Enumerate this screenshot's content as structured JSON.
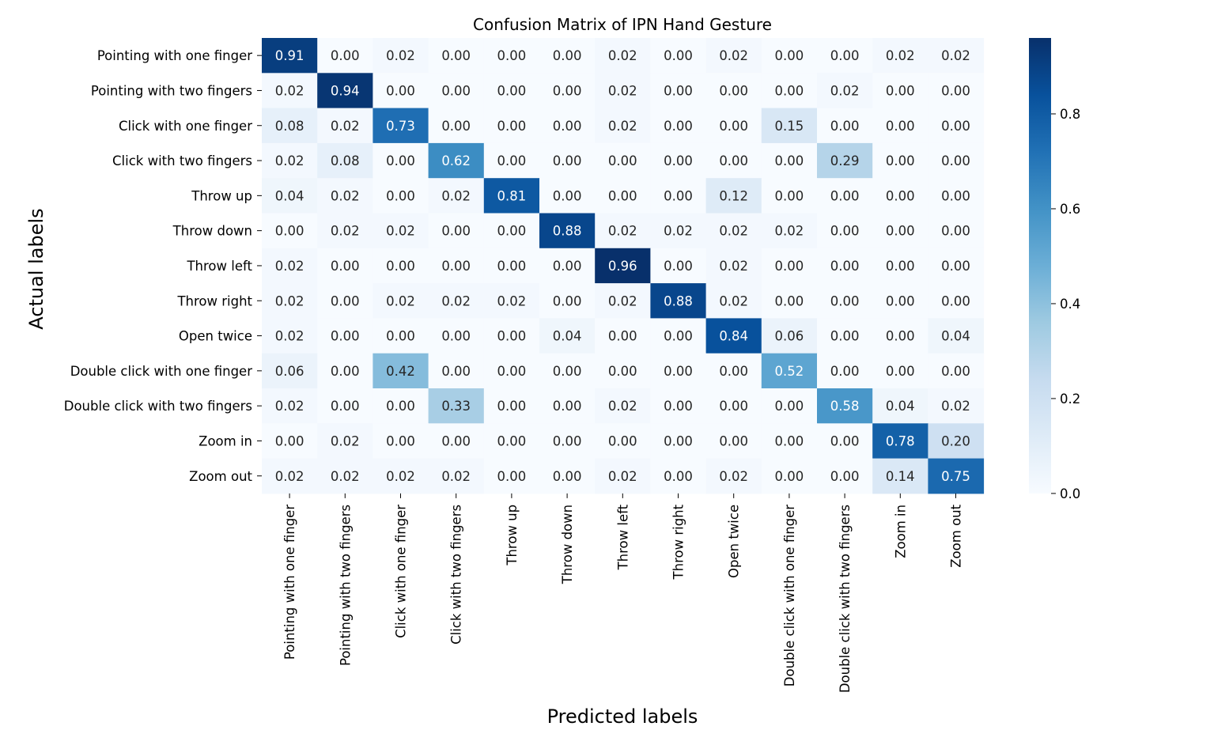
{
  "chart_data": {
    "type": "heatmap",
    "title": "Confusion Matrix of IPN Hand Gesture",
    "xlabel": "Predicted labels",
    "ylabel": "Actual labels",
    "colormap": "Blues",
    "vmin": 0.0,
    "vmax": 0.96,
    "colorbar_ticks": [
      "0.0",
      "0.2",
      "0.4",
      "0.6",
      "0.8"
    ],
    "colorbar_tick_values": [
      0.0,
      0.2,
      0.4,
      0.6,
      0.8
    ],
    "labels": [
      "Pointing with one finger",
      "Pointing with two fingers",
      "Click with one finger",
      "Click with two fingers",
      "Throw up",
      "Throw down",
      "Throw left",
      "Throw right",
      "Open twice",
      "Double click with one finger",
      "Double click with two fingers",
      "Zoom in",
      "Zoom out"
    ],
    "matrix": [
      [
        0.91,
        0.0,
        0.02,
        0.0,
        0.0,
        0.0,
        0.02,
        0.0,
        0.02,
        0.0,
        0.0,
        0.02,
        0.02
      ],
      [
        0.02,
        0.94,
        0.0,
        0.0,
        0.0,
        0.0,
        0.02,
        0.0,
        0.0,
        0.0,
        0.02,
        0.0,
        0.0
      ],
      [
        0.08,
        0.02,
        0.73,
        0.0,
        0.0,
        0.0,
        0.02,
        0.0,
        0.0,
        0.15,
        0.0,
        0.0,
        0.0
      ],
      [
        0.02,
        0.08,
        0.0,
        0.62,
        0.0,
        0.0,
        0.0,
        0.0,
        0.0,
        0.0,
        0.29,
        0.0,
        0.0
      ],
      [
        0.04,
        0.02,
        0.0,
        0.02,
        0.81,
        0.0,
        0.0,
        0.0,
        0.12,
        0.0,
        0.0,
        0.0,
        0.0
      ],
      [
        0.0,
        0.02,
        0.02,
        0.0,
        0.0,
        0.88,
        0.02,
        0.02,
        0.02,
        0.02,
        0.0,
        0.0,
        0.0
      ],
      [
        0.02,
        0.0,
        0.0,
        0.0,
        0.0,
        0.0,
        0.96,
        0.0,
        0.02,
        0.0,
        0.0,
        0.0,
        0.0
      ],
      [
        0.02,
        0.0,
        0.02,
        0.02,
        0.02,
        0.0,
        0.02,
        0.88,
        0.02,
        0.0,
        0.0,
        0.0,
        0.0
      ],
      [
        0.02,
        0.0,
        0.0,
        0.0,
        0.0,
        0.04,
        0.0,
        0.0,
        0.84,
        0.06,
        0.0,
        0.0,
        0.04
      ],
      [
        0.06,
        0.0,
        0.42,
        0.0,
        0.0,
        0.0,
        0.0,
        0.0,
        0.0,
        0.52,
        0.0,
        0.0,
        0.0
      ],
      [
        0.02,
        0.0,
        0.0,
        0.33,
        0.0,
        0.0,
        0.02,
        0.0,
        0.0,
        0.0,
        0.58,
        0.04,
        0.02
      ],
      [
        0.0,
        0.02,
        0.0,
        0.0,
        0.0,
        0.0,
        0.0,
        0.0,
        0.0,
        0.0,
        0.0,
        0.78,
        0.2
      ],
      [
        0.02,
        0.02,
        0.02,
        0.02,
        0.0,
        0.0,
        0.02,
        0.0,
        0.02,
        0.0,
        0.0,
        0.14,
        0.75
      ]
    ],
    "grid": false
  }
}
